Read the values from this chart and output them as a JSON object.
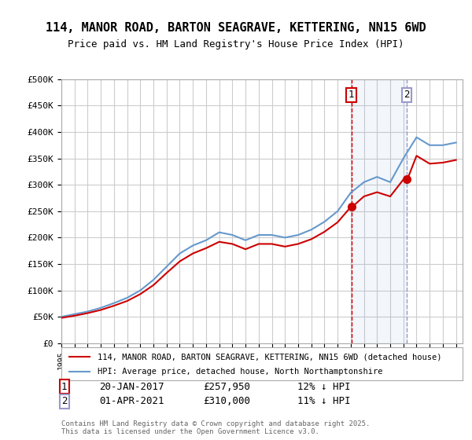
{
  "title": "114, MANOR ROAD, BARTON SEAGRAVE, KETTERING, NN15 6WD",
  "subtitle": "Price paid vs. HM Land Registry's House Price Index (HPI)",
  "ylabel": "",
  "ylim": [
    0,
    500000
  ],
  "yticks": [
    0,
    50000,
    100000,
    150000,
    200000,
    250000,
    300000,
    350000,
    400000,
    450000,
    500000
  ],
  "ytick_labels": [
    "£0",
    "£50K",
    "£100K",
    "£150K",
    "£200K",
    "£250K",
    "£300K",
    "£350K",
    "£400K",
    "£450K",
    "£500K"
  ],
  "background_color": "#ffffff",
  "grid_color": "#cccccc",
  "purchase1_date": "20-JAN-2017",
  "purchase1_price": 257950,
  "purchase1_hpi_diff": "12% ↓ HPI",
  "purchase2_date": "01-APR-2021",
  "purchase2_price": 310000,
  "purchase2_hpi_diff": "11% ↓ HPI",
  "legend_line1": "114, MANOR ROAD, BARTON SEAGRAVE, KETTERING, NN15 6WD (detached house)",
  "legend_line2": "HPI: Average price, detached house, North Northamptonshire",
  "footer": "Contains HM Land Registry data © Crown copyright and database right 2025.\nThis data is licensed under the Open Government Licence v3.0.",
  "line_color_red": "#cc0000",
  "line_color_blue": "#6699cc",
  "marker_color_red": "#cc0000",
  "vline_color1": "#cc0000",
  "vline_color2": "#9999cc",
  "hpi_years": [
    1995,
    1996,
    1997,
    1998,
    1999,
    2000,
    2001,
    2002,
    2003,
    2004,
    2005,
    2006,
    2007,
    2008,
    2009,
    2010,
    2011,
    2012,
    2013,
    2014,
    2015,
    2016,
    2017,
    2018,
    2019,
    2020,
    2021,
    2022,
    2023,
    2024,
    2025
  ],
  "hpi_values": [
    50000,
    55000,
    60000,
    67000,
    76000,
    86000,
    100000,
    120000,
    145000,
    170000,
    185000,
    195000,
    210000,
    205000,
    195000,
    205000,
    205000,
    200000,
    205000,
    215000,
    230000,
    250000,
    285000,
    305000,
    315000,
    305000,
    350000,
    390000,
    375000,
    375000,
    380000
  ],
  "house_years": [
    1995,
    1996,
    1997,
    1998,
    1999,
    2000,
    2001,
    2002,
    2003,
    2004,
    2005,
    2006,
    2007,
    2008,
    2009,
    2010,
    2011,
    2012,
    2013,
    2014,
    2015,
    2016,
    2017,
    2017.1,
    2018,
    2019,
    2020,
    2021,
    2021.3,
    2022,
    2023,
    2024,
    2025
  ],
  "house_values": [
    48000,
    52000,
    57000,
    63000,
    71000,
    80000,
    93000,
    110000,
    133000,
    155000,
    170000,
    180000,
    192000,
    188000,
    178000,
    188000,
    188000,
    183000,
    188000,
    197000,
    211000,
    229000,
    257950,
    257950,
    278000,
    286000,
    278000,
    310000,
    310000,
    355000,
    340000,
    342000,
    347000
  ]
}
